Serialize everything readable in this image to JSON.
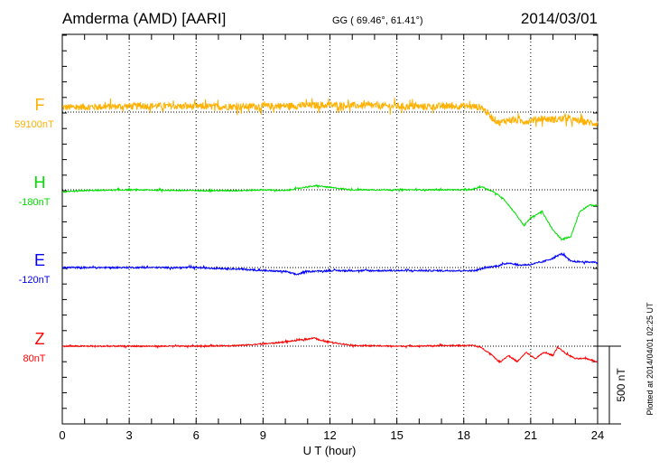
{
  "header": {
    "station": "Amderma (AMD)  [AARI]",
    "coords": "GG ( 69.46°,  61.41°)",
    "date": "2014/03/01"
  },
  "footer": {
    "plotted": "Plotted at 2014/04/01 02:25 UT"
  },
  "chart_data": {
    "type": "line",
    "xlabel": "U T (hour)",
    "xlim": [
      0,
      24
    ],
    "xticks": [
      "0",
      "3",
      "6",
      "9",
      "12",
      "15",
      "18",
      "21",
      "24"
    ],
    "scale_bar": "500 nT",
    "scale_bar_nT": 500,
    "series": [
      {
        "name": "F",
        "baseline_label": "59100nT",
        "color": "#ffb000",
        "noise": 22,
        "points": [
          [
            0,
            30
          ],
          [
            2,
            35
          ],
          [
            4,
            40
          ],
          [
            6,
            35
          ],
          [
            8,
            35
          ],
          [
            10,
            40
          ],
          [
            12,
            45
          ],
          [
            14,
            40
          ],
          [
            16,
            35
          ],
          [
            18,
            40
          ],
          [
            18.8,
            30
          ],
          [
            19.3,
            -40
          ],
          [
            19.6,
            -70
          ],
          [
            20,
            -50
          ],
          [
            20.8,
            -60
          ],
          [
            21.5,
            -40
          ],
          [
            22,
            -50
          ],
          [
            22.5,
            -40
          ],
          [
            23,
            -55
          ],
          [
            24,
            -75
          ]
        ]
      },
      {
        "name": "H",
        "baseline_label": "-180nT",
        "color": "#00e000",
        "noise": 4,
        "points": [
          [
            0,
            -15
          ],
          [
            1,
            -5
          ],
          [
            3,
            0
          ],
          [
            6,
            -5
          ],
          [
            8,
            -5
          ],
          [
            9,
            0
          ],
          [
            10,
            -5
          ],
          [
            11,
            20
          ],
          [
            11.5,
            25
          ],
          [
            12,
            15
          ],
          [
            13,
            0
          ],
          [
            15,
            0
          ],
          [
            18.3,
            0
          ],
          [
            18.8,
            20
          ],
          [
            19.3,
            -10
          ],
          [
            19.8,
            -60
          ],
          [
            20.3,
            -150
          ],
          [
            20.7,
            -230
          ],
          [
            21,
            -180
          ],
          [
            21.5,
            -140
          ],
          [
            22,
            -260
          ],
          [
            22.4,
            -320
          ],
          [
            22.8,
            -300
          ],
          [
            23.2,
            -140
          ],
          [
            23.6,
            -100
          ],
          [
            24,
            -100
          ]
        ]
      },
      {
        "name": "E",
        "baseline_label": "-120nT",
        "color": "#0000ff",
        "noise": 5,
        "points": [
          [
            0,
            0
          ],
          [
            3,
            0
          ],
          [
            6,
            0
          ],
          [
            8,
            -10
          ],
          [
            9,
            -20
          ],
          [
            10,
            -25
          ],
          [
            10.5,
            -45
          ],
          [
            11,
            -25
          ],
          [
            12,
            -20
          ],
          [
            14,
            -20
          ],
          [
            18.5,
            -20
          ],
          [
            19,
            0
          ],
          [
            19.5,
            10
          ],
          [
            20,
            30
          ],
          [
            20.5,
            15
          ],
          [
            21,
            20
          ],
          [
            21.5,
            35
          ],
          [
            22,
            60
          ],
          [
            22.4,
            90
          ],
          [
            22.8,
            40
          ],
          [
            23.5,
            35
          ],
          [
            24,
            35
          ]
        ]
      },
      {
        "name": "Z",
        "baseline_label": "80nT",
        "color": "#ff0000",
        "noise": 4,
        "points": [
          [
            0,
            0
          ],
          [
            3,
            0
          ],
          [
            6,
            0
          ],
          [
            8,
            5
          ],
          [
            9.5,
            20
          ],
          [
            11,
            45
          ],
          [
            11.3,
            55
          ],
          [
            11.6,
            35
          ],
          [
            13,
            5
          ],
          [
            15,
            0
          ],
          [
            18.4,
            5
          ],
          [
            18.8,
            -10
          ],
          [
            19.3,
            -60
          ],
          [
            19.6,
            -105
          ],
          [
            20,
            -60
          ],
          [
            20.4,
            -100
          ],
          [
            20.8,
            -40
          ],
          [
            21.2,
            -80
          ],
          [
            21.6,
            -40
          ],
          [
            22,
            -60
          ],
          [
            22.2,
            -5
          ],
          [
            22.6,
            -50
          ],
          [
            23,
            -80
          ],
          [
            23.5,
            -80
          ],
          [
            24,
            -100
          ]
        ]
      }
    ]
  }
}
